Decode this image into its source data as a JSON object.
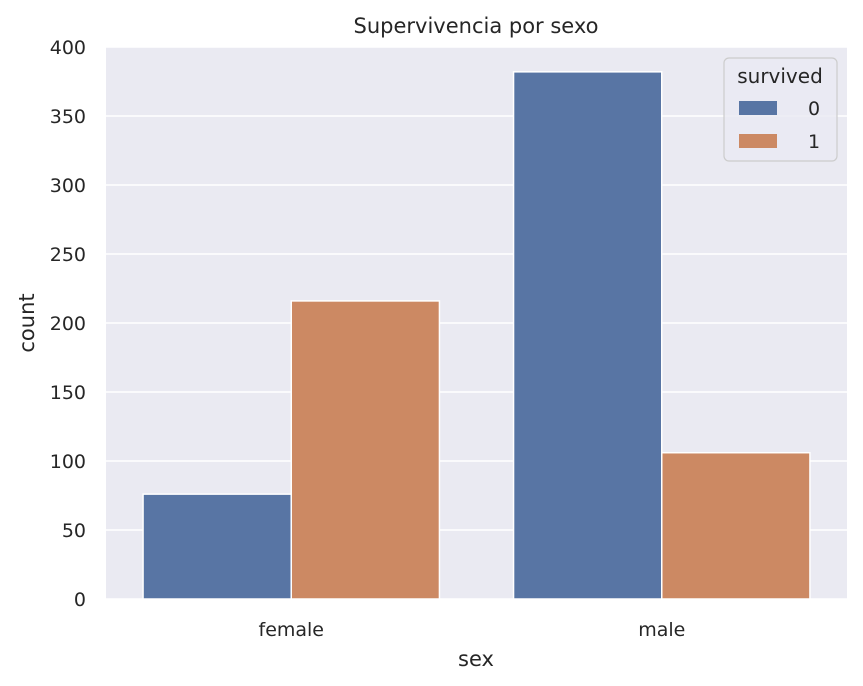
{
  "chart_data": {
    "type": "bar",
    "title": "Supervivencia por sexo",
    "xlabel": "sex",
    "ylabel": "count",
    "categories": [
      "female",
      "male"
    ],
    "series": [
      {
        "name": "0",
        "values": [
          76,
          382
        ],
        "color": "#5875a4"
      },
      {
        "name": "1",
        "values": [
          216,
          106
        ],
        "color": "#cc8963"
      }
    ],
    "ylim": [
      0,
      400
    ],
    "yticks": [
      0,
      50,
      100,
      150,
      200,
      250,
      300,
      350,
      400
    ],
    "grid": true,
    "legend": {
      "title": "survived",
      "position": "top-right"
    },
    "background": "#eaeaf2"
  }
}
